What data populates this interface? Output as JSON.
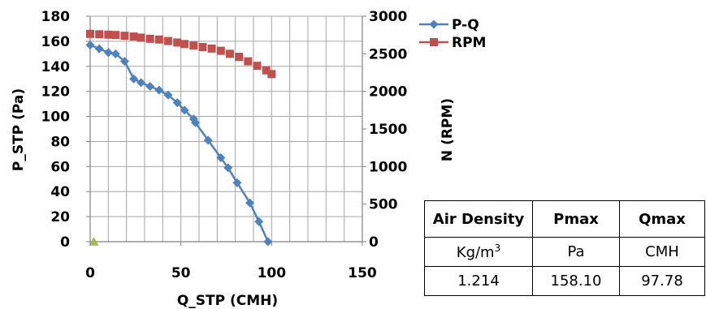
{
  "chart_data": {
    "type": "scatter",
    "xlabel": "Q_STP (CMH)",
    "ylabel": "P_STP (Pa)",
    "y2label": "N (RPM)",
    "xlim": [
      0,
      150
    ],
    "ylim": [
      0,
      180
    ],
    "y2lim": [
      0,
      3000
    ],
    "x_ticks": [
      0,
      50,
      100,
      150
    ],
    "y_ticks": [
      0,
      20,
      40,
      60,
      80,
      100,
      120,
      140,
      160,
      180
    ],
    "y2_ticks": [
      0,
      500,
      1000,
      1500,
      2000,
      2500,
      3000
    ],
    "grid": true,
    "legend": "top-right",
    "series": [
      {
        "name": "P-Q",
        "axis": "left",
        "color": "#4F81BD",
        "marker": "diamond",
        "points": [
          [
            0,
            157
          ],
          [
            5,
            154
          ],
          [
            10,
            151
          ],
          [
            14,
            150
          ],
          [
            19,
            144
          ],
          [
            24,
            130
          ],
          [
            28,
            127
          ],
          [
            33,
            124
          ],
          [
            38,
            121
          ],
          [
            43,
            117
          ],
          [
            48,
            111
          ],
          [
            52,
            105
          ],
          [
            57,
            98
          ],
          [
            58,
            95
          ],
          [
            65,
            81
          ],
          [
            72,
            67
          ],
          [
            76,
            59
          ],
          [
            81,
            47
          ],
          [
            88,
            31
          ],
          [
            93,
            16
          ],
          [
            98,
            0
          ]
        ]
      },
      {
        "name": "RPM",
        "axis": "right",
        "color": "#C0504D",
        "marker": "square",
        "points": [
          [
            0,
            2765
          ],
          [
            5,
            2760
          ],
          [
            10,
            2755
          ],
          [
            14,
            2750
          ],
          [
            19,
            2740
          ],
          [
            24,
            2730
          ],
          [
            28,
            2715
          ],
          [
            33,
            2700
          ],
          [
            38,
            2690
          ],
          [
            43,
            2670
          ],
          [
            48,
            2650
          ],
          [
            52,
            2630
          ],
          [
            57,
            2610
          ],
          [
            62,
            2590
          ],
          [
            67,
            2570
          ],
          [
            72,
            2540
          ],
          [
            77,
            2500
          ],
          [
            82,
            2460
          ],
          [
            87,
            2400
          ],
          [
            92,
            2340
          ],
          [
            97,
            2280
          ],
          [
            100,
            2230
          ]
        ]
      },
      {
        "axis": "left",
        "color": "#9BBB59",
        "marker": "triangle",
        "points": [
          [
            2,
            0
          ]
        ]
      }
    ]
  },
  "info_table": {
    "headers": [
      "Air Density",
      "Pmax",
      "Qmax"
    ],
    "units": {
      "air_density_base": "Kg/m",
      "air_density_exp": "3",
      "pmax": "Pa",
      "qmax": "CMH"
    },
    "values": [
      "1.214",
      "158.10",
      "97.78"
    ]
  }
}
